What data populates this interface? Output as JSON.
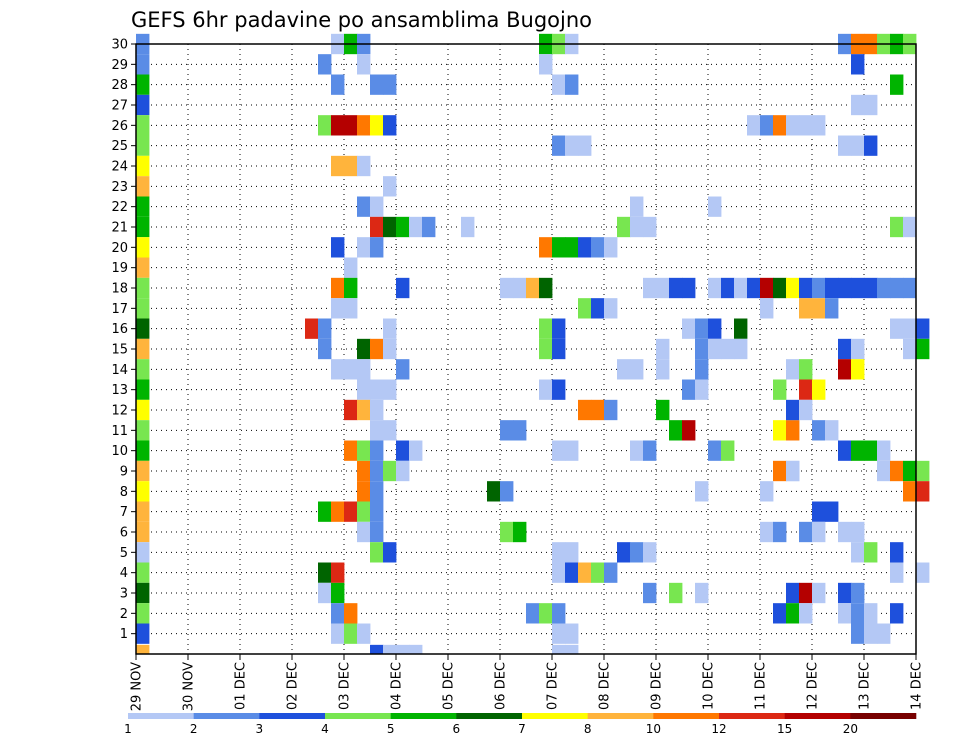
{
  "chart_data": {
    "type": "heatmap",
    "title": "GEFS 6hr padavine po ansamblima Bugojno",
    "xlabel": "",
    "ylabel": "",
    "x_ticks": [
      "29 NOV",
      "30 NOV",
      "01 DEC",
      "02 DEC",
      "03 DEC",
      "04 DEC",
      "05 DEC",
      "06 DEC",
      "07 DEC",
      "08 DEC",
      "09 DEC",
      "10 DEC",
      "11 DEC",
      "12 DEC",
      "13 DEC",
      "14 DEC"
    ],
    "y_ticks": [
      "1",
      "2",
      "3",
      "4",
      "5",
      "6",
      "7",
      "8",
      "9",
      "10",
      "11",
      "12",
      "13",
      "14",
      "15",
      "16",
      "17",
      "18",
      "19",
      "20",
      "21",
      "22",
      "23",
      "24",
      "25",
      "26",
      "27",
      "28",
      "29",
      "30"
    ],
    "x_step_hours": 6,
    "x_range_steps": [
      0,
      60
    ],
    "y_range": [
      0,
      30
    ],
    "grid": "dotted",
    "color_levels": [
      "1",
      "2",
      "3",
      "4",
      "5",
      "6",
      "7",
      "8",
      "10",
      "12",
      "15",
      "20"
    ],
    "colors": [
      "#b4c8f5",
      "#5a8ce6",
      "#1e50dc",
      "#78e650",
      "#00b400",
      "#006400",
      "#ffff00",
      "#ffb43c",
      "#ff7800",
      "#dc2814",
      "#b40000",
      "#780000"
    ],
    "note_cells": "cells: [ensemble_member_row, step_index (6h from 29 NOV 00Z), color_class]",
    "cells": [
      [
        30,
        0,
        1
      ],
      [
        29,
        0,
        1
      ],
      [
        28,
        0,
        4
      ],
      [
        27,
        0,
        2
      ],
      [
        26,
        0,
        3
      ],
      [
        25,
        0,
        3
      ],
      [
        24,
        0,
        6
      ],
      [
        23,
        0,
        7
      ],
      [
        22,
        0,
        4
      ],
      [
        21,
        0,
        4
      ],
      [
        20,
        0,
        6
      ],
      [
        19,
        0,
        7
      ],
      [
        18,
        0,
        3
      ],
      [
        17,
        0,
        3
      ],
      [
        16,
        0,
        5
      ],
      [
        15,
        0,
        7
      ],
      [
        14,
        0,
        3
      ],
      [
        13,
        0,
        4
      ],
      [
        12,
        0,
        6
      ],
      [
        11,
        0,
        3
      ],
      [
        10,
        0,
        4
      ],
      [
        9,
        0,
        7
      ],
      [
        8,
        0,
        6
      ],
      [
        7,
        0,
        7
      ],
      [
        6,
        0,
        7
      ],
      [
        5,
        0,
        0
      ],
      [
        4,
        0,
        3
      ],
      [
        3,
        0,
        5
      ],
      [
        2,
        0,
        3
      ],
      [
        1,
        0,
        2
      ],
      [
        0,
        0,
        7
      ],
      [
        30,
        15,
        0
      ],
      [
        30,
        16,
        4
      ],
      [
        30,
        17,
        1
      ],
      [
        29,
        14,
        1
      ],
      [
        29,
        17,
        0
      ],
      [
        28,
        15,
        1
      ],
      [
        28,
        18,
        1
      ],
      [
        28,
        19,
        1
      ],
      [
        26,
        14,
        3
      ],
      [
        26,
        15,
        10
      ],
      [
        26,
        16,
        10
      ],
      [
        26,
        17,
        8
      ],
      [
        26,
        18,
        6
      ],
      [
        26,
        19,
        2
      ],
      [
        24,
        15,
        7
      ],
      [
        24,
        16,
        7
      ],
      [
        24,
        17,
        0
      ],
      [
        23,
        19,
        0
      ],
      [
        22,
        17,
        1
      ],
      [
        22,
        18,
        0
      ],
      [
        21,
        18,
        9
      ],
      [
        21,
        19,
        5
      ],
      [
        21,
        20,
        4
      ],
      [
        21,
        21,
        0
      ],
      [
        21,
        22,
        1
      ],
      [
        21,
        25,
        0
      ],
      [
        20,
        15,
        2
      ],
      [
        20,
        17,
        0
      ],
      [
        20,
        18,
        1
      ],
      [
        19,
        16,
        0
      ],
      [
        18,
        15,
        8
      ],
      [
        18,
        16,
        4
      ],
      [
        18,
        20,
        2
      ],
      [
        17,
        15,
        0
      ],
      [
        17,
        16,
        0
      ],
      [
        16,
        13,
        9
      ],
      [
        16,
        14,
        1
      ],
      [
        16,
        19,
        0
      ],
      [
        15,
        14,
        1
      ],
      [
        15,
        17,
        5
      ],
      [
        15,
        18,
        8
      ],
      [
        15,
        19,
        0
      ],
      [
        14,
        15,
        0
      ],
      [
        14,
        16,
        0
      ],
      [
        14,
        17,
        0
      ],
      [
        14,
        20,
        1
      ],
      [
        13,
        17,
        0
      ],
      [
        13,
        18,
        0
      ],
      [
        13,
        19,
        0
      ],
      [
        12,
        16,
        9
      ],
      [
        12,
        17,
        7
      ],
      [
        12,
        18,
        0
      ],
      [
        11,
        18,
        0
      ],
      [
        11,
        19,
        0
      ],
      [
        10,
        16,
        8
      ],
      [
        10,
        17,
        3
      ],
      [
        10,
        18,
        1
      ],
      [
        10,
        20,
        2
      ],
      [
        10,
        21,
        0
      ],
      [
        9,
        17,
        8
      ],
      [
        9,
        18,
        1
      ],
      [
        9,
        19,
        3
      ],
      [
        9,
        20,
        0
      ],
      [
        8,
        17,
        8
      ],
      [
        8,
        18,
        1
      ],
      [
        7,
        14,
        4
      ],
      [
        7,
        15,
        8
      ],
      [
        7,
        16,
        9
      ],
      [
        7,
        17,
        3
      ],
      [
        7,
        18,
        1
      ],
      [
        6,
        17,
        0
      ],
      [
        6,
        18,
        1
      ],
      [
        5,
        18,
        3
      ],
      [
        5,
        19,
        2
      ],
      [
        4,
        14,
        5
      ],
      [
        4,
        15,
        9
      ],
      [
        3,
        14,
        0
      ],
      [
        3,
        15,
        4
      ],
      [
        2,
        15,
        1
      ],
      [
        2,
        16,
        8
      ],
      [
        1,
        15,
        0
      ],
      [
        1,
        16,
        3
      ],
      [
        1,
        17,
        0
      ],
      [
        0,
        18,
        2
      ],
      [
        0,
        19,
        0
      ],
      [
        0,
        20,
        0
      ],
      [
        0,
        21,
        0
      ],
      [
        30,
        31,
        4
      ],
      [
        30,
        32,
        3
      ],
      [
        30,
        33,
        0
      ],
      [
        29,
        31,
        0
      ],
      [
        28,
        32,
        0
      ],
      [
        28,
        33,
        1
      ],
      [
        26,
        47,
        0
      ],
      [
        26,
        48,
        1
      ],
      [
        26,
        49,
        8
      ],
      [
        26,
        50,
        0
      ],
      [
        26,
        51,
        0
      ],
      [
        26,
        52,
        0
      ],
      [
        25,
        32,
        1
      ],
      [
        25,
        33,
        0
      ],
      [
        25,
        34,
        0
      ],
      [
        22,
        38,
        0
      ],
      [
        22,
        44,
        0
      ],
      [
        21,
        37,
        3
      ],
      [
        21,
        38,
        0
      ],
      [
        21,
        39,
        0
      ],
      [
        20,
        31,
        8
      ],
      [
        20,
        32,
        4
      ],
      [
        20,
        33,
        4
      ],
      [
        20,
        34,
        2
      ],
      [
        20,
        35,
        1
      ],
      [
        20,
        36,
        0
      ],
      [
        18,
        28,
        0
      ],
      [
        18,
        29,
        0
      ],
      [
        18,
        30,
        7
      ],
      [
        18,
        31,
        5
      ],
      [
        18,
        39,
        0
      ],
      [
        18,
        40,
        0
      ],
      [
        18,
        41,
        2
      ],
      [
        18,
        42,
        2
      ],
      [
        18,
        44,
        0
      ],
      [
        18,
        45,
        2
      ],
      [
        18,
        46,
        0
      ],
      [
        18,
        47,
        2
      ],
      [
        18,
        48,
        10
      ],
      [
        18,
        49,
        5
      ],
      [
        18,
        50,
        6
      ],
      [
        18,
        51,
        2
      ],
      [
        18,
        52,
        1
      ],
      [
        18,
        53,
        2
      ],
      [
        17,
        34,
        3
      ],
      [
        17,
        35,
        2
      ],
      [
        17,
        36,
        0
      ],
      [
        17,
        48,
        0
      ],
      [
        17,
        51,
        7
      ],
      [
        17,
        52,
        7
      ],
      [
        17,
        53,
        1
      ],
      [
        16,
        31,
        3
      ],
      [
        16,
        32,
        2
      ],
      [
        16,
        42,
        0
      ],
      [
        16,
        43,
        1
      ],
      [
        16,
        44,
        2
      ],
      [
        16,
        46,
        5
      ],
      [
        15,
        31,
        3
      ],
      [
        15,
        32,
        2
      ],
      [
        15,
        40,
        0
      ],
      [
        15,
        43,
        1
      ],
      [
        15,
        44,
        0
      ],
      [
        15,
        45,
        0
      ],
      [
        15,
        46,
        0
      ],
      [
        14,
        37,
        0
      ],
      [
        14,
        38,
        0
      ],
      [
        14,
        40,
        0
      ],
      [
        14,
        43,
        1
      ],
      [
        13,
        31,
        0
      ],
      [
        13,
        32,
        2
      ],
      [
        13,
        42,
        1
      ],
      [
        13,
        43,
        0
      ],
      [
        13,
        49,
        3
      ],
      [
        12,
        34,
        8
      ],
      [
        12,
        35,
        8
      ],
      [
        12,
        36,
        1
      ],
      [
        12,
        40,
        4
      ],
      [
        11,
        28,
        1
      ],
      [
        11,
        29,
        1
      ],
      [
        11,
        41,
        4
      ],
      [
        11,
        42,
        10
      ],
      [
        11,
        49,
        6
      ],
      [
        11,
        50,
        8
      ],
      [
        11,
        52,
        1
      ],
      [
        11,
        53,
        0
      ],
      [
        10,
        32,
        0
      ],
      [
        10,
        33,
        0
      ],
      [
        10,
        38,
        0
      ],
      [
        10,
        39,
        1
      ],
      [
        10,
        44,
        1
      ],
      [
        10,
        45,
        3
      ],
      [
        9,
        49,
        8
      ],
      [
        9,
        50,
        0
      ],
      [
        8,
        27,
        5
      ],
      [
        8,
        28,
        1
      ],
      [
        8,
        43,
        0
      ],
      [
        8,
        48,
        0
      ],
      [
        7,
        53,
        2
      ],
      [
        6,
        28,
        3
      ],
      [
        6,
        29,
        4
      ],
      [
        6,
        48,
        0
      ],
      [
        6,
        49,
        1
      ],
      [
        5,
        32,
        0
      ],
      [
        5,
        33,
        0
      ],
      [
        5,
        37,
        2
      ],
      [
        5,
        38,
        1
      ],
      [
        5,
        39,
        0
      ],
      [
        4,
        32,
        0
      ],
      [
        4,
        33,
        2
      ],
      [
        4,
        34,
        7
      ],
      [
        4,
        35,
        3
      ],
      [
        4,
        36,
        1
      ],
      [
        3,
        39,
        1
      ],
      [
        3,
        41,
        3
      ],
      [
        3,
        43,
        0
      ],
      [
        2,
        30,
        1
      ],
      [
        2,
        31,
        3
      ],
      [
        2,
        32,
        1
      ],
      [
        1,
        32,
        0
      ],
      [
        1,
        33,
        0
      ],
      [
        0,
        32,
        0
      ],
      [
        0,
        33,
        0
      ],
      [
        30,
        54,
        1
      ],
      [
        30,
        55,
        8
      ],
      [
        30,
        56,
        8
      ],
      [
        30,
        57,
        3
      ],
      [
        30,
        58,
        4
      ],
      [
        30,
        59,
        3
      ],
      [
        29,
        55,
        2
      ],
      [
        28,
        58,
        4
      ],
      [
        27,
        55,
        0
      ],
      [
        27,
        56,
        0
      ],
      [
        25,
        54,
        0
      ],
      [
        25,
        55,
        0
      ],
      [
        25,
        56,
        2
      ],
      [
        21,
        58,
        3
      ],
      [
        21,
        59,
        0
      ],
      [
        18,
        54,
        2
      ],
      [
        18,
        55,
        2
      ],
      [
        18,
        56,
        2
      ],
      [
        18,
        57,
        1
      ],
      [
        18,
        58,
        1
      ],
      [
        18,
        59,
        1
      ],
      [
        16,
        58,
        0
      ],
      [
        16,
        59,
        0
      ],
      [
        16,
        60,
        2
      ],
      [
        15,
        54,
        2
      ],
      [
        15,
        55,
        0
      ],
      [
        15,
        59,
        0
      ],
      [
        15,
        60,
        4
      ],
      [
        14,
        54,
        10
      ],
      [
        14,
        55,
        6
      ],
      [
        10,
        54,
        2
      ],
      [
        10,
        55,
        4
      ],
      [
        10,
        56,
        4
      ],
      [
        10,
        57,
        0
      ],
      [
        9,
        57,
        0
      ],
      [
        9,
        58,
        8
      ],
      [
        9,
        59,
        4
      ],
      [
        9,
        60,
        3
      ],
      [
        8,
        59,
        8
      ],
      [
        8,
        60,
        9
      ],
      [
        6,
        54,
        0
      ],
      [
        6,
        55,
        0
      ],
      [
        5,
        55,
        0
      ],
      [
        5,
        56,
        3
      ],
      [
        5,
        58,
        2
      ],
      [
        4,
        58,
        0
      ],
      [
        4,
        60,
        0
      ],
      [
        3,
        54,
        2
      ],
      [
        3,
        55,
        1
      ],
      [
        2,
        54,
        0
      ],
      [
        2,
        55,
        1
      ],
      [
        2,
        56,
        0
      ],
      [
        2,
        58,
        2
      ],
      [
        1,
        55,
        1
      ],
      [
        1,
        56,
        0
      ],
      [
        1,
        57,
        0
      ],
      [
        3,
        50,
        2
      ],
      [
        3,
        51,
        10
      ],
      [
        3,
        52,
        0
      ],
      [
        2,
        49,
        2
      ],
      [
        2,
        50,
        4
      ],
      [
        2,
        51,
        0
      ],
      [
        9,
        50,
        0
      ],
      [
        7,
        52,
        2
      ],
      [
        6,
        51,
        1
      ],
      [
        6,
        52,
        0
      ],
      [
        13,
        51,
        9
      ],
      [
        13,
        52,
        6
      ],
      [
        14,
        50,
        0
      ],
      [
        14,
        51,
        3
      ],
      [
        12,
        50,
        2
      ],
      [
        12,
        51,
        0
      ]
    ]
  }
}
